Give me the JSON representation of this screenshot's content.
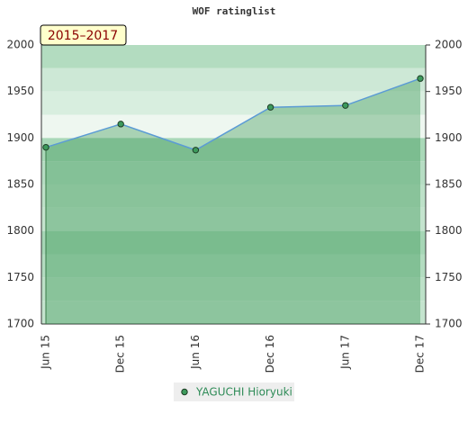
{
  "chart_data": {
    "type": "area",
    "title": "WOF ratinglist",
    "annotation": "2015–2017",
    "categories": [
      "Jun 15",
      "Dec 15",
      "Jun 16",
      "Dec 16",
      "Jun 17",
      "Dec 17"
    ],
    "series": [
      {
        "name": "YAGUCHI Hioryuki",
        "color": "#5b9bd5",
        "values": [
          1890,
          1915,
          1887,
          1933,
          1935,
          1964
        ]
      }
    ],
    "ylim": [
      1700,
      2000
    ],
    "yticks": [
      1700,
      1750,
      1800,
      1850,
      1900,
      1950,
      2000
    ]
  }
}
